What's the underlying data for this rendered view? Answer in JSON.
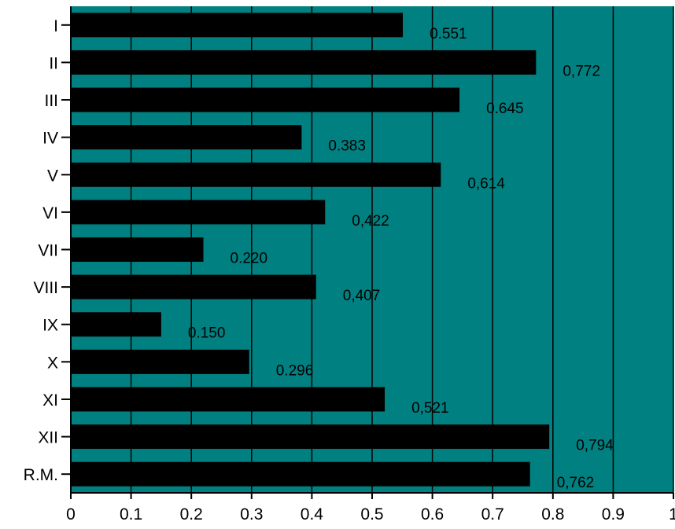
{
  "colors": {
    "plot_background": "#008080",
    "bar": "#000000",
    "gridline": "#000000",
    "text": "#000000"
  },
  "chart_data": {
    "type": "bar",
    "orientation": "horizontal",
    "categories": [
      "I",
      "II",
      "III",
      "IV",
      "V",
      "VI",
      "VII",
      "VIII",
      "IX",
      "X",
      "XI",
      "XII",
      "R.M."
    ],
    "values": [
      0.551,
      0.772,
      0.645,
      0.383,
      0.614,
      0.422,
      0.22,
      0.407,
      0.15,
      0.296,
      0.521,
      0.794,
      0.762
    ],
    "data_labels": [
      "0.551",
      "0,772",
      "0.645",
      "0.383",
      "0,614",
      "0,422",
      "0.220",
      "0,407",
      "0.150",
      "0.296",
      "0,521",
      "0,794",
      "0,762"
    ],
    "xlim": [
      0,
      1
    ],
    "xticks": [
      0,
      0.1,
      0.2,
      0.3,
      0.4,
      0.5,
      0.6,
      0.7,
      0.8,
      0.9,
      1
    ],
    "xtick_labels": [
      "0",
      "0.1",
      "0.2",
      "0.3",
      "0.4",
      "0.5",
      "0.6",
      "0.7",
      "0.8",
      "0.9",
      "1"
    ],
    "grid": "vertical",
    "legend": "none",
    "title": "",
    "xlabel": "",
    "ylabel": ""
  }
}
